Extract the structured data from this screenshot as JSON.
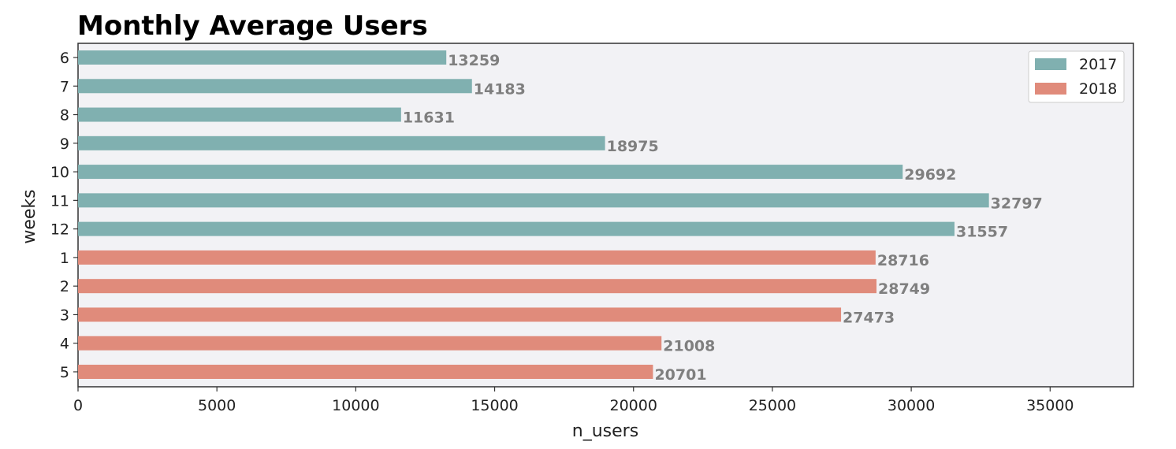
{
  "chart_data": {
    "type": "bar",
    "orientation": "horizontal",
    "title": "Monthly Average Users",
    "xlabel": "n_users",
    "ylabel": "weeks",
    "xlim": [
      0,
      38000
    ],
    "x_ticks": [
      0,
      5000,
      10000,
      15000,
      20000,
      25000,
      30000,
      35000
    ],
    "grid": false,
    "legend_position": "top-right",
    "background_color": "#f2f2f5",
    "categories": [
      "6",
      "7",
      "8",
      "9",
      "10",
      "11",
      "12",
      "1",
      "2",
      "3",
      "4",
      "5"
    ],
    "values": [
      13259,
      14183,
      11631,
      18975,
      29692,
      32797,
      31557,
      28716,
      28749,
      27473,
      21008,
      20701
    ],
    "bar_series": [
      "2017",
      "2017",
      "2017",
      "2017",
      "2017",
      "2017",
      "2017",
      "2018",
      "2018",
      "2018",
      "2018",
      "2018"
    ],
    "series": [
      {
        "name": "2017",
        "color": "#80b0b0"
      },
      {
        "name": "2018",
        "color": "#e08b7b"
      }
    ]
  }
}
